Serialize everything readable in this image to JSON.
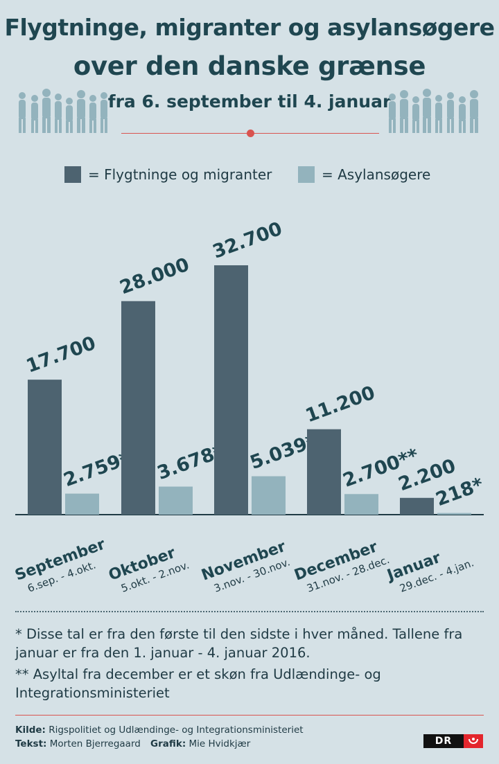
{
  "header": {
    "title_line1": "Flygtninge, migranter og asylansøgere",
    "title_line2": "over den danske grænse",
    "subtitle": "fra 6. september til 4. januar"
  },
  "legend": {
    "items": [
      {
        "label": "= Flygtninge og migranter",
        "color": "#4d6370"
      },
      {
        "label": "= Asylansøgere",
        "color": "#93b3bd"
      }
    ]
  },
  "chart_data": {
    "type": "bar",
    "categories": [
      "September",
      "Oktober",
      "November",
      "December",
      "Januar"
    ],
    "periods": [
      "6.sep. - 4.okt.",
      "5.okt. - 2.nov.",
      "3.nov. - 30.nov.",
      "31.nov. - 28.dec.",
      "29.dec. - 4.jan."
    ],
    "series": [
      {
        "name": "Flygtninge og migranter",
        "values": [
          17700,
          28000,
          32700,
          11200,
          2200
        ],
        "labels": [
          "17.700",
          "28.000",
          "32.700",
          "11.200",
          "2.200"
        ],
        "color": "#4d6370"
      },
      {
        "name": "Asylansøgere",
        "values": [
          2759,
          3678,
          5039,
          2700,
          218
        ],
        "labels": [
          "2.759*",
          "3.678*",
          "5.039*",
          "2.700**",
          "218*"
        ],
        "color": "#93b3bd"
      }
    ],
    "ylim": [
      0,
      32700
    ],
    "grid": false,
    "legend_position": "top"
  },
  "footnotes": {
    "note1": "* Disse tal er fra den første til den sidste i hver måned. Tallene fra januar er fra den 1. januar - 4. januar 2016.",
    "note2": "** Asyltal fra december er et skøn fra Udlændinge- og Integrationsministeriet"
  },
  "credits": {
    "source_label": "Kilde:",
    "source": "Rigspolitiet og Udlændinge- og Integrationsministeriet",
    "text_label": "Tekst:",
    "text": "Morten Bjerregaard",
    "graphic_label": "Grafik:",
    "graphic": "Mie Hvidkjær",
    "logo": "DR"
  },
  "colors": {
    "background": "#d5e1e6",
    "accent_red": "#d9534f",
    "title": "#1f4650"
  }
}
